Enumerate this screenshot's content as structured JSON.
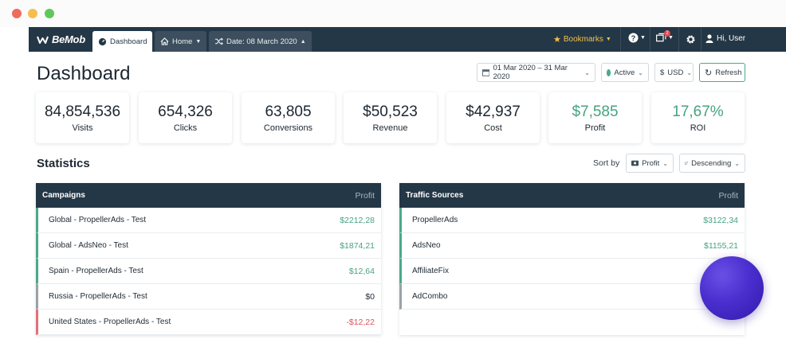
{
  "window": {
    "controls": [
      "close",
      "minimize",
      "maximize"
    ]
  },
  "navbar": {
    "logo": "BeMob",
    "tabs": [
      {
        "label": "Dashboard",
        "icon": "dashboard-icon"
      },
      {
        "label": "Home",
        "icon": "home-icon"
      },
      {
        "label": "Date: 08 March 2020",
        "icon": "shuffle-icon"
      }
    ],
    "bookmarks": "Bookmarks",
    "notification_count": "2",
    "user": "Hi, User"
  },
  "page": {
    "title": "Dashboard",
    "date_range": "01 Mar 2020 – 31 Mar 2020",
    "status": "Active",
    "currency": "USD",
    "refresh": "Refresh"
  },
  "stats": [
    {
      "value": "84,854,536",
      "label": "Visits"
    },
    {
      "value": "654,326",
      "label": "Clicks"
    },
    {
      "value": "63,805",
      "label": "Conversions"
    },
    {
      "value": "$50,523",
      "label": "Revenue"
    },
    {
      "value": "$42,937",
      "label": "Cost"
    },
    {
      "value": "$7,585",
      "label": "Profit"
    },
    {
      "value": "17,67%",
      "label": "ROI"
    }
  ],
  "statistics": {
    "title": "Statistics",
    "sort_by_label": "Sort by",
    "sort_field": "Profit",
    "sort_order": "Descending"
  },
  "campaigns": {
    "title": "Campaigns",
    "column": "Profit",
    "rows": [
      {
        "name": "Global - PropellerAds - Test",
        "value": "$2212,28"
      },
      {
        "name": "Global - AdsNeo - Test",
        "value": "$1874,21"
      },
      {
        "name": "Spain - PropellerAds - Test",
        "value": "$12,64"
      },
      {
        "name": "Russia - PropellerAds - Test",
        "value": "$0"
      },
      {
        "name": "United States - PropellerAds - Test",
        "value": "-$12,22"
      }
    ]
  },
  "traffic_sources": {
    "title": "Traffic Sources",
    "column": "Profit",
    "rows": [
      {
        "name": "PropellerAds",
        "value": "$3122,34"
      },
      {
        "name": "AdsNeo",
        "value": "$1155,21"
      },
      {
        "name": "AffiliateFix",
        "value": ""
      },
      {
        "name": "AdCombo",
        "value": ""
      }
    ]
  },
  "colors": {
    "navbar": "#243746",
    "positive": "#46a37f",
    "negative": "#d9525e",
    "bookmarks": "#f4c14b",
    "orb": "#4a2fcf"
  }
}
